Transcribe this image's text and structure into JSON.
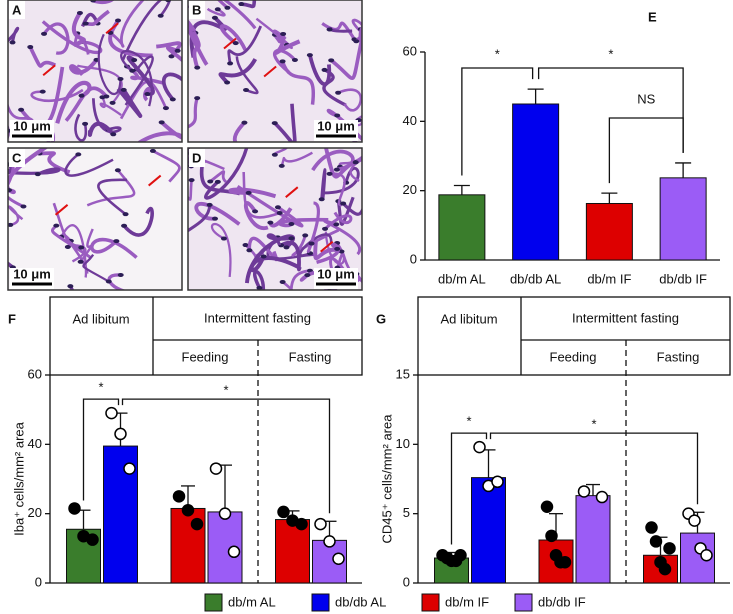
{
  "images": [
    {
      "label": "A",
      "scale": "10 μm"
    },
    {
      "label": "B",
      "scale": "10 μm"
    },
    {
      "label": "C",
      "scale": "10 μm"
    },
    {
      "label": "D",
      "scale": "10 μm"
    }
  ],
  "chart_data": [
    {
      "type": "bar",
      "panel": "E",
      "categories": [
        "db/m AL",
        "db/db AL",
        "db/m IF",
        "db/db IF"
      ],
      "values": [
        18.8,
        45,
        16.3,
        23.7
      ],
      "errors": [
        2.7,
        4.3,
        3,
        4.3
      ],
      "colors": [
        "#3a7d2c",
        "#0000ee",
        "#dd0000",
        "#9b5cf6"
      ],
      "ylim": [
        0,
        60
      ],
      "yticks": [
        0,
        20,
        40,
        60
      ],
      "annotations": [
        "*",
        "*",
        "NS"
      ]
    },
    {
      "type": "dotbar",
      "panel": "F",
      "ylabel": "Iba⁺ cells/mm² area",
      "header": "Intermittent fasting",
      "groups": [
        {
          "label": "Ad libitum",
          "colors": [
            "#3a7d2c",
            "#0000ee"
          ],
          "values": [
            15.5,
            39.5
          ],
          "errors": [
            5.5,
            9.5
          ],
          "points": [
            [
              21.5,
              13.5,
              12.5
            ],
            [
              49,
              43,
              33
            ]
          ]
        },
        {
          "label": "Feeding",
          "colors": [
            "#dd0000",
            "#9b5cf6"
          ],
          "values": [
            21.5,
            20.5
          ],
          "errors": [
            6.5,
            13.5
          ],
          "points": [
            [
              25,
              21,
              17
            ],
            [
              33,
              20,
              9
            ]
          ]
        },
        {
          "label": "Fasting",
          "colors": [
            "#dd0000",
            "#9b5cf6"
          ],
          "values": [
            18.3,
            12.3
          ],
          "errors": [
            2.5,
            5.5
          ],
          "points": [
            [
              20.5,
              18,
              17
            ],
            [
              17,
              12,
              7
            ]
          ]
        }
      ],
      "ylim": [
        0,
        60
      ],
      "yticks": [
        0,
        20,
        40,
        60
      ],
      "annotations": [
        "*",
        "*"
      ]
    },
    {
      "type": "dotbar",
      "panel": "G",
      "ylabel": "CD45⁺ cells/mm² area",
      "header": "Intermittent fasting",
      "groups": [
        {
          "label": "Ad libitum",
          "colors": [
            "#3a7d2c",
            "#0000ee"
          ],
          "values": [
            1.8,
            7.6
          ],
          "errors": [
            0.4,
            2
          ],
          "points": [
            [
              2,
              1.8,
              1.6,
              1.6,
              2
            ],
            [
              9.8,
              7,
              7.3
            ]
          ]
        },
        {
          "label": "Feeding",
          "colors": [
            "#dd0000",
            "#9b5cf6"
          ],
          "values": [
            3.1,
            6.3
          ],
          "errors": [
            1.9,
            0.8
          ],
          "points": [
            [
              5.5,
              3.4,
              2,
              1.5,
              1.5
            ],
            [
              6.6,
              6.2
            ]
          ]
        },
        {
          "label": "Fasting",
          "colors": [
            "#dd0000",
            "#9b5cf6"
          ],
          "values": [
            2.0,
            3.6
          ],
          "errors": [
            1.3,
            1.5
          ],
          "points": [
            [
              4,
              3,
              1.5,
              1,
              2.5
            ],
            [
              5,
              4.5,
              2.5,
              2
            ]
          ]
        }
      ],
      "ylim": [
        0,
        15
      ],
      "yticks": [
        0,
        5,
        10,
        15
      ],
      "annotations": [
        "*",
        "*"
      ]
    }
  ],
  "legend": [
    {
      "name": "db/m AL",
      "color": "#3a7d2c"
    },
    {
      "name": "db/db AL",
      "color": "#0000ee"
    },
    {
      "name": "db/m IF",
      "color": "#dd0000"
    },
    {
      "name": "db/db IF",
      "color": "#9b5cf6"
    }
  ]
}
